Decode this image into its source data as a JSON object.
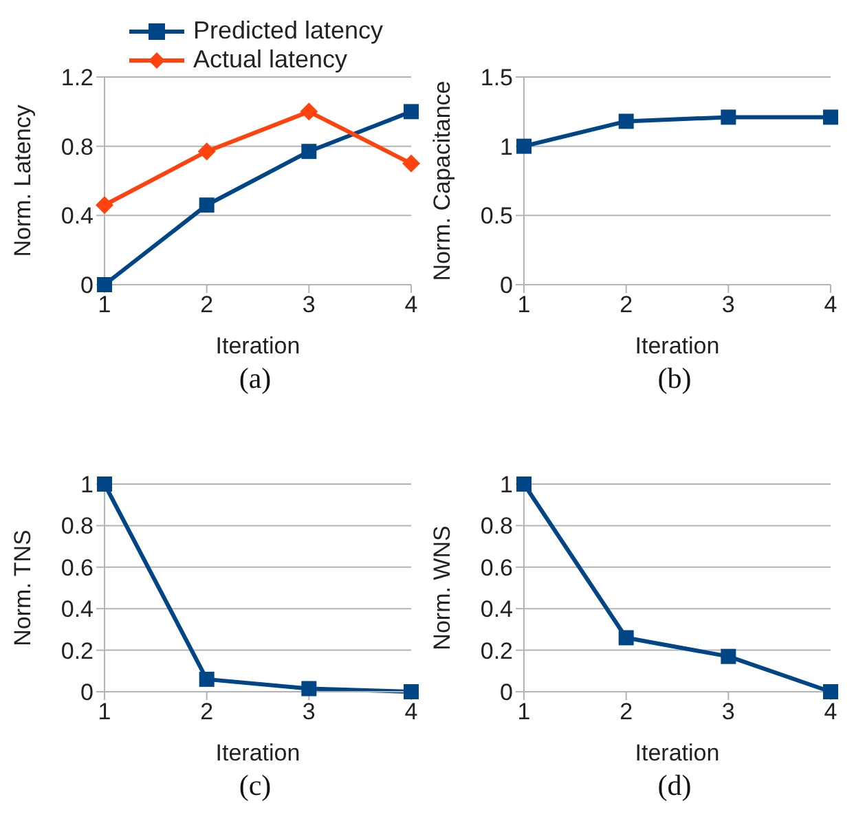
{
  "chart_data": [
    {
      "type": "line",
      "xlabel": "Iteration",
      "ylabel": "Norm. Latency",
      "x": [
        1,
        2,
        3,
        4
      ],
      "xlim": [
        1,
        4
      ],
      "xticks": [
        1,
        2,
        3,
        4
      ],
      "ylim": [
        0,
        1.2
      ],
      "yticks": [
        0,
        0.4,
        0.8,
        1.2
      ],
      "grid": "y",
      "legend": "top",
      "annotations": [
        "(a)"
      ],
      "series": [
        {
          "name": "Predicted latency",
          "color": "#004586",
          "marker": "square",
          "values": [
            0,
            0.46,
            0.77,
            1.0
          ]
        },
        {
          "name": "Actual latency",
          "color": "#ff420e",
          "marker": "diamond",
          "values": [
            0.46,
            0.77,
            1.0,
            0.7
          ]
        }
      ]
    },
    {
      "type": "line",
      "xlabel": "Iteration",
      "ylabel": "Norm. Capacitance",
      "x": [
        1,
        2,
        3,
        4
      ],
      "xlim": [
        1,
        4
      ],
      "xticks": [
        1,
        2,
        3,
        4
      ],
      "ylim": [
        0,
        1.5
      ],
      "yticks": [
        0,
        0.5,
        1,
        1.5
      ],
      "grid": "y",
      "annotations": [
        "(b)"
      ],
      "series": [
        {
          "color": "#004586",
          "marker": "square",
          "values": [
            1,
            1.18,
            1.21,
            1.21
          ]
        }
      ]
    },
    {
      "type": "line",
      "xlabel": "Iteration",
      "ylabel": "Norm. TNS",
      "x": [
        1,
        2,
        3,
        4
      ],
      "xlim": [
        1,
        4
      ],
      "xticks": [
        1,
        2,
        3,
        4
      ],
      "ylim": [
        0,
        1
      ],
      "yticks": [
        0,
        0.2,
        0.4,
        0.6,
        0.8,
        1
      ],
      "grid": "y",
      "annotations": [
        "(c)"
      ],
      "series": [
        {
          "color": "#004586",
          "marker": "square",
          "values": [
            1,
            0.06,
            0.015,
            0
          ]
        }
      ]
    },
    {
      "type": "line",
      "xlabel": "Iteration",
      "ylabel": "Norm. WNS",
      "x": [
        1,
        2,
        3,
        4
      ],
      "xlim": [
        1,
        4
      ],
      "xticks": [
        1,
        2,
        3,
        4
      ],
      "ylim": [
        0,
        1
      ],
      "yticks": [
        0,
        0.2,
        0.4,
        0.6,
        0.8,
        1
      ],
      "grid": "y",
      "annotations": [
        "(d)"
      ],
      "series": [
        {
          "color": "#004586",
          "marker": "square",
          "values": [
            1,
            0.26,
            0.17,
            0
          ]
        }
      ]
    }
  ]
}
